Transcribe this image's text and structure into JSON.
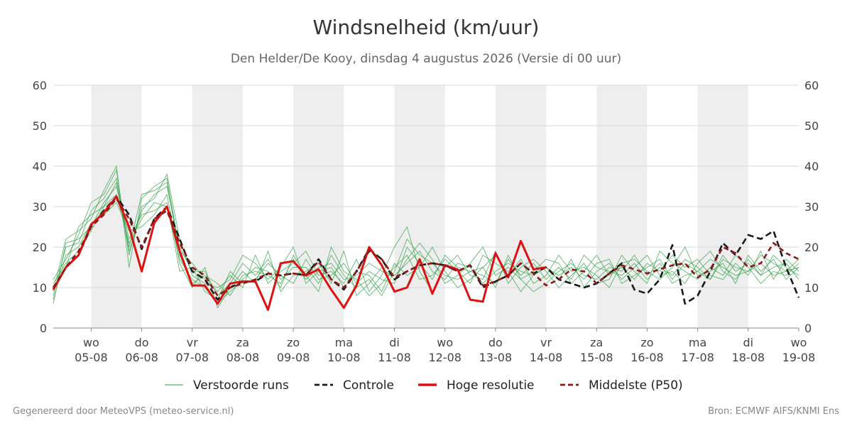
{
  "chart_data": {
    "type": "line",
    "title": "Windsnelheid (km/uur)",
    "subtitle": "Den Helder/De Kooy, dinsdag  4 augustus 2026 (Versie di 00 uur)",
    "ylim": [
      0,
      60
    ],
    "yticks": [
      0,
      10,
      20,
      30,
      40,
      50,
      60
    ],
    "x_range_days": [
      -0.75,
      14.0
    ],
    "x_ticks": [
      {
        "day": "wo",
        "date": "05-08",
        "x": 0
      },
      {
        "day": "do",
        "date": "06-08",
        "x": 1
      },
      {
        "day": "vr",
        "date": "07-08",
        "x": 2
      },
      {
        "day": "za",
        "date": "08-08",
        "x": 3
      },
      {
        "day": "zo",
        "date": "09-08",
        "x": 4
      },
      {
        "day": "ma",
        "date": "10-08",
        "x": 5
      },
      {
        "day": "di",
        "date": "11-08",
        "x": 6
      },
      {
        "day": "wo",
        "date": "12-08",
        "x": 7
      },
      {
        "day": "do",
        "date": "13-08",
        "x": 8
      },
      {
        "day": "vr",
        "date": "14-08",
        "x": 9
      },
      {
        "day": "za",
        "date": "15-08",
        "x": 10
      },
      {
        "day": "zo",
        "date": "16-08",
        "x": 11
      },
      {
        "day": "ma",
        "date": "17-08",
        "x": 12
      },
      {
        "day": "di",
        "date": "18-08",
        "x": 13
      },
      {
        "day": "wo",
        "date": "19-08",
        "x": 14
      }
    ],
    "shaded_days": [
      [
        0,
        1
      ],
      [
        2,
        3
      ],
      [
        4,
        5
      ],
      [
        6,
        7
      ],
      [
        8,
        9
      ],
      [
        10,
        11
      ],
      [
        12,
        13
      ]
    ],
    "grid": true,
    "legend_position": "bottom",
    "series": [
      {
        "name": "Verstoorde runs",
        "style": "ensemble",
        "color": "#2ea043",
        "x_start": -0.75,
        "x_step": 0.25,
        "members": [
          [
            8,
            20,
            21,
            29,
            32,
            37,
            19,
            29,
            33,
            35,
            20,
            14,
            14,
            8,
            11,
            16,
            13,
            17,
            12,
            15,
            15,
            11,
            18,
            13,
            10,
            12,
            8,
            14,
            22,
            18,
            16,
            13,
            12,
            14,
            15,
            10,
            18,
            12,
            9,
            11,
            14,
            16,
            13,
            12,
            15,
            14,
            18,
            13,
            16,
            11,
            13,
            14,
            12,
            17,
            15,
            14,
            18,
            16,
            14,
            15
          ],
          [
            11,
            16,
            19,
            24,
            30,
            33,
            21,
            27,
            31,
            30,
            17,
            12,
            10,
            6,
            9,
            12,
            15,
            14,
            10,
            18,
            13,
            9,
            20,
            14,
            12,
            8,
            11,
            15,
            18,
            12,
            13,
            17,
            14,
            11,
            18,
            16,
            14,
            9,
            13,
            15,
            12,
            17,
            10,
            14,
            16,
            12,
            15,
            18,
            13,
            14,
            11,
            16,
            19,
            14,
            12,
            17,
            13,
            15,
            16,
            12
          ],
          [
            9,
            22,
            24,
            27,
            34,
            40,
            15,
            32,
            35,
            37,
            19,
            16,
            12,
            9,
            13,
            10,
            18,
            11,
            14,
            16,
            19,
            13,
            14,
            11,
            17,
            9,
            13,
            20,
            25,
            14,
            9,
            15,
            18,
            13,
            12,
            19,
            11,
            15,
            17,
            14,
            10,
            13,
            16,
            11,
            12,
            18,
            14,
            11,
            19,
            16,
            14,
            12,
            15,
            13,
            18,
            15,
            11,
            14,
            13,
            16
          ],
          [
            7,
            18,
            20,
            26,
            28,
            31,
            24,
            25,
            28,
            33,
            16,
            10,
            15,
            5,
            10,
            14,
            11,
            19,
            9,
            13,
            14,
            16,
            11,
            19,
            8,
            11,
            15,
            12,
            17,
            21,
            17,
            11,
            13,
            16,
            20,
            13,
            15,
            12,
            14,
            17,
            16,
            11,
            14,
            18,
            13,
            15,
            12,
            16,
            14,
            18,
            15,
            17,
            13,
            12,
            16,
            13,
            19,
            12,
            17,
            14
          ],
          [
            12,
            17,
            23,
            31,
            33,
            39,
            18,
            30,
            32,
            38,
            22,
            13,
            11,
            10,
            12,
            18,
            16,
            12,
            15,
            20,
            11,
            14,
            15,
            10,
            14,
            13,
            9,
            16,
            13,
            15,
            20,
            14,
            10,
            12,
            15,
            18,
            13,
            17,
            11,
            13,
            18,
            14,
            15,
            13,
            10,
            16,
            17,
            14,
            12,
            15,
            20,
            13,
            14,
            16,
            11,
            18,
            14,
            17,
            12,
            15
          ],
          [
            6,
            21,
            22,
            25,
            31,
            35,
            22,
            28,
            29,
            31,
            14,
            15,
            9,
            7,
            14,
            11,
            12,
            16,
            13,
            11,
            17,
            12,
            13,
            16,
            11,
            14,
            12,
            11,
            20,
            16,
            12,
            18,
            15,
            14,
            13,
            11,
            17,
            13,
            16,
            12,
            15,
            12,
            18,
            15,
            14,
            13,
            16,
            12,
            15,
            13,
            17,
            15,
            12,
            18,
            14,
            16,
            13,
            18,
            15,
            13
          ],
          [
            10,
            15,
            25,
            28,
            30,
            36,
            20,
            33,
            34,
            36,
            18,
            11,
            13,
            11,
            8,
            13,
            14,
            13,
            11,
            17,
            12,
            15,
            16,
            12,
            13,
            16,
            14,
            13,
            16,
            19,
            14,
            12,
            16,
            15,
            11,
            14,
            16,
            14,
            13,
            15,
            13,
            15,
            12,
            16,
            17,
            11,
            13,
            15,
            17,
            12,
            16,
            14,
            17,
            15,
            13,
            14,
            16,
            13,
            14,
            17
          ]
        ]
      },
      {
        "name": "Controle",
        "style": "dashed",
        "color": "#1a1a1a",
        "points": [
          [
            -0.75,
            9.5
          ],
          [
            -0.5,
            15
          ],
          [
            -0.25,
            18
          ],
          [
            0,
            25
          ],
          [
            0.25,
            29
          ],
          [
            0.5,
            32.5
          ],
          [
            0.75,
            28
          ],
          [
            1,
            19.5
          ],
          [
            1.25,
            27
          ],
          [
            1.5,
            30
          ],
          [
            1.75,
            22
          ],
          [
            2,
            14
          ],
          [
            2.25,
            12
          ],
          [
            2.5,
            7
          ],
          [
            2.75,
            10
          ],
          [
            3,
            11.5
          ],
          [
            3.25,
            11.5
          ],
          [
            3.5,
            13.5
          ],
          [
            3.75,
            13
          ],
          [
            4,
            13.5
          ],
          [
            4.25,
            13
          ],
          [
            4.5,
            17
          ],
          [
            4.75,
            12
          ],
          [
            5,
            9.5
          ],
          [
            5.25,
            14
          ],
          [
            5.5,
            19.5
          ],
          [
            5.75,
            17
          ],
          [
            6,
            12
          ],
          [
            6.25,
            14
          ],
          [
            6.5,
            15.5
          ],
          [
            6.75,
            16
          ],
          [
            7,
            15.5
          ],
          [
            7.25,
            14
          ],
          [
            7.5,
            15.5
          ],
          [
            7.75,
            10
          ],
          [
            8,
            11.5
          ],
          [
            8.25,
            13
          ],
          [
            8.5,
            16
          ],
          [
            8.75,
            13.5
          ],
          [
            9,
            15
          ],
          [
            9.25,
            12
          ],
          [
            9.5,
            11
          ],
          [
            9.75,
            10
          ],
          [
            10,
            11
          ],
          [
            10.25,
            13.5
          ],
          [
            10.5,
            16
          ],
          [
            10.75,
            9.5
          ],
          [
            11,
            8.5
          ],
          [
            11.25,
            12
          ],
          [
            11.5,
            20.5
          ],
          [
            11.75,
            6
          ],
          [
            12,
            8
          ],
          [
            12.25,
            14
          ],
          [
            12.5,
            21
          ],
          [
            12.75,
            18
          ],
          [
            13,
            23
          ],
          [
            13.25,
            22
          ],
          [
            13.5,
            24
          ],
          [
            13.75,
            15
          ],
          [
            14,
            7.5
          ]
        ]
      },
      {
        "name": "Hoge resolutie",
        "style": "solid-thick",
        "color": "#dd1111",
        "points": [
          [
            -0.75,
            9.5
          ],
          [
            -0.5,
            15
          ],
          [
            -0.25,
            18
          ],
          [
            0,
            25.5
          ],
          [
            0.25,
            28.5
          ],
          [
            0.5,
            32.5
          ],
          [
            0.75,
            25
          ],
          [
            1,
            14
          ],
          [
            1.25,
            26
          ],
          [
            1.5,
            30
          ],
          [
            1.75,
            19
          ],
          [
            2,
            10.5
          ],
          [
            2.25,
            10.5
          ],
          [
            2.5,
            6
          ],
          [
            2.75,
            11
          ],
          [
            3,
            11.5
          ],
          [
            3.25,
            11.5
          ],
          [
            3.5,
            4.5
          ],
          [
            3.75,
            16
          ],
          [
            4,
            16.5
          ],
          [
            4.25,
            13
          ],
          [
            4.5,
            14.5
          ],
          [
            4.75,
            9.5
          ],
          [
            5,
            5
          ],
          [
            5.25,
            10.5
          ],
          [
            5.5,
            20
          ],
          [
            5.75,
            15.5
          ],
          [
            6,
            9
          ],
          [
            6.25,
            10
          ],
          [
            6.5,
            17
          ],
          [
            6.75,
            8.5
          ],
          [
            7,
            15.5
          ],
          [
            7.25,
            14.5
          ],
          [
            7.5,
            7
          ],
          [
            7.75,
            6.5
          ],
          [
            8,
            18.5
          ],
          [
            8.25,
            12.5
          ],
          [
            8.5,
            21.5
          ],
          [
            8.75,
            14.5
          ],
          [
            9,
            15
          ]
        ]
      },
      {
        "name": "Middelste (P50)",
        "style": "dashed",
        "color": "#8b1a1a",
        "points": [
          [
            -0.75,
            10
          ],
          [
            -0.5,
            15
          ],
          [
            -0.25,
            19
          ],
          [
            0,
            25
          ],
          [
            0.25,
            28
          ],
          [
            0.5,
            32
          ],
          [
            0.75,
            27
          ],
          [
            1,
            20
          ],
          [
            1.25,
            27
          ],
          [
            1.5,
            29
          ],
          [
            1.75,
            21
          ],
          [
            2,
            15
          ],
          [
            2.25,
            13
          ],
          [
            2.5,
            8
          ],
          [
            2.75,
            10
          ],
          [
            3,
            11
          ],
          [
            3.25,
            12
          ],
          [
            3.5,
            13.5
          ],
          [
            3.75,
            13
          ],
          [
            4,
            13.5
          ],
          [
            4.25,
            13
          ],
          [
            4.5,
            16.5
          ],
          [
            4.75,
            12
          ],
          [
            5,
            10
          ],
          [
            5.25,
            14
          ],
          [
            5.5,
            19
          ],
          [
            5.75,
            17
          ],
          [
            6,
            12.5
          ],
          [
            6.25,
            14
          ],
          [
            6.5,
            15.5
          ],
          [
            6.75,
            16
          ],
          [
            7,
            15.5
          ],
          [
            7.25,
            14
          ],
          [
            7.5,
            15.5
          ],
          [
            7.75,
            10.5
          ],
          [
            8,
            11.5
          ],
          [
            8.25,
            13
          ],
          [
            8.5,
            16
          ],
          [
            8.75,
            13.5
          ],
          [
            9,
            10.5
          ],
          [
            9.25,
            12
          ],
          [
            9.5,
            14.5
          ],
          [
            9.75,
            14
          ],
          [
            10,
            11
          ],
          [
            10.25,
            13.5
          ],
          [
            10.5,
            15.5
          ],
          [
            10.75,
            14.5
          ],
          [
            11,
            13.5
          ],
          [
            11.25,
            14.5
          ],
          [
            11.5,
            15.5
          ],
          [
            11.75,
            16
          ],
          [
            12,
            12.5
          ],
          [
            12.25,
            14.5
          ],
          [
            12.5,
            20
          ],
          [
            12.75,
            18.5
          ],
          [
            13,
            15
          ],
          [
            13.25,
            16
          ],
          [
            13.5,
            21
          ],
          [
            13.75,
            18.5
          ],
          [
            14,
            17
          ]
        ]
      }
    ]
  },
  "footer": {
    "left": "Gegenereerd door MeteoVPS (meteo-service.nl)",
    "right": "Bron: ECMWF AIFS/KNMI Ens"
  }
}
